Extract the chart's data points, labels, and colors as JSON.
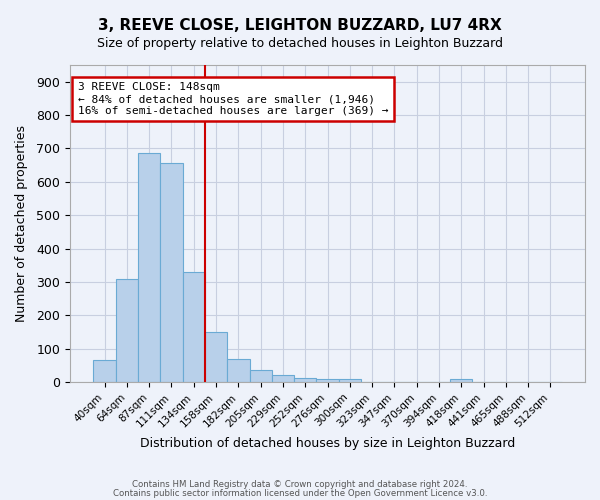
{
  "title": "3, REEVE CLOSE, LEIGHTON BUZZARD, LU7 4RX",
  "subtitle": "Size of property relative to detached houses in Leighton Buzzard",
  "xlabel": "Distribution of detached houses by size in Leighton Buzzard",
  "ylabel": "Number of detached properties",
  "bar_values": [
    65,
    310,
    685,
    655,
    330,
    150,
    68,
    35,
    20,
    12,
    10,
    8,
    0,
    0,
    0,
    0,
    10,
    0,
    0,
    0,
    0
  ],
  "bin_labels": [
    "40sqm",
    "64sqm",
    "87sqm",
    "111sqm",
    "134sqm",
    "158sqm",
    "182sqm",
    "205sqm",
    "229sqm",
    "252sqm",
    "276sqm",
    "300sqm",
    "323sqm",
    "347sqm",
    "370sqm",
    "394sqm",
    "418sqm",
    "441sqm",
    "465sqm",
    "488sqm",
    "512sqm"
  ],
  "bar_color": "#b8d0ea",
  "bar_edge_color": "#6aaad4",
  "vline_color": "#cc0000",
  "vline_pos": 4.5,
  "ylim": [
    0,
    950
  ],
  "yticks": [
    0,
    100,
    200,
    300,
    400,
    500,
    600,
    700,
    800,
    900
  ],
  "annotation_title": "3 REEVE CLOSE: 148sqm",
  "annotation_line1": "← 84% of detached houses are smaller (1,946)",
  "annotation_line2": "16% of semi-detached houses are larger (369) →",
  "annotation_box_color": "#ffffff",
  "annotation_box_edgecolor": "#cc0000",
  "footer1": "Contains HM Land Registry data © Crown copyright and database right 2024.",
  "footer2": "Contains public sector information licensed under the Open Government Licence v3.0.",
  "background_color": "#eef2fa",
  "grid_color": "#c8cfe0",
  "figsize": [
    6.0,
    5.0
  ],
  "dpi": 100
}
